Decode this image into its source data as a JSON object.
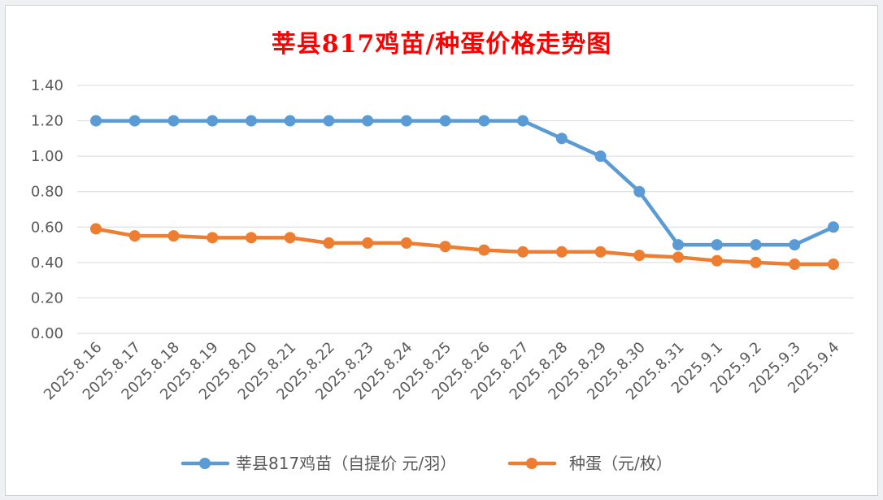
{
  "chart_data": {
    "type": "line",
    "title": "莘县817鸡苗/种蛋价格走势图",
    "categories": [
      "2025.8.16",
      "2025.8.17",
      "2025.8.18",
      "2025.8.19",
      "2025.8.20",
      "2025.8.21",
      "2025.8.22",
      "2025.8.23",
      "2025.8.24",
      "2025.8.25",
      "2025.8.26",
      "2025.8.27",
      "2025.8.28",
      "2025.8.29",
      "2025.8.30",
      "2025.8.31",
      "2025.9.1",
      "2025.9.2",
      "2025.9.3",
      "2025.9.4"
    ],
    "series": [
      {
        "name": "莘县817鸡苗（自提价 元/羽）",
        "color": "#5b9bd5",
        "values": [
          1.2,
          1.2,
          1.2,
          1.2,
          1.2,
          1.2,
          1.2,
          1.2,
          1.2,
          1.2,
          1.2,
          1.2,
          1.1,
          1.0,
          0.8,
          0.5,
          0.5,
          0.5,
          0.5,
          0.6
        ]
      },
      {
        "name": "种蛋（元/枚）",
        "color": "#ed7d31",
        "values": [
          0.59,
          0.55,
          0.55,
          0.54,
          0.54,
          0.54,
          0.51,
          0.51,
          0.51,
          0.49,
          0.47,
          0.46,
          0.46,
          0.46,
          0.44,
          0.43,
          0.41,
          0.4,
          0.39,
          0.39
        ]
      }
    ],
    "ylim": [
      0,
      1.4
    ],
    "yticks": [
      "0.00",
      "0.20",
      "0.40",
      "0.60",
      "0.80",
      "1.00",
      "1.20",
      "1.40"
    ],
    "grid": true,
    "legend_position": "bottom"
  }
}
